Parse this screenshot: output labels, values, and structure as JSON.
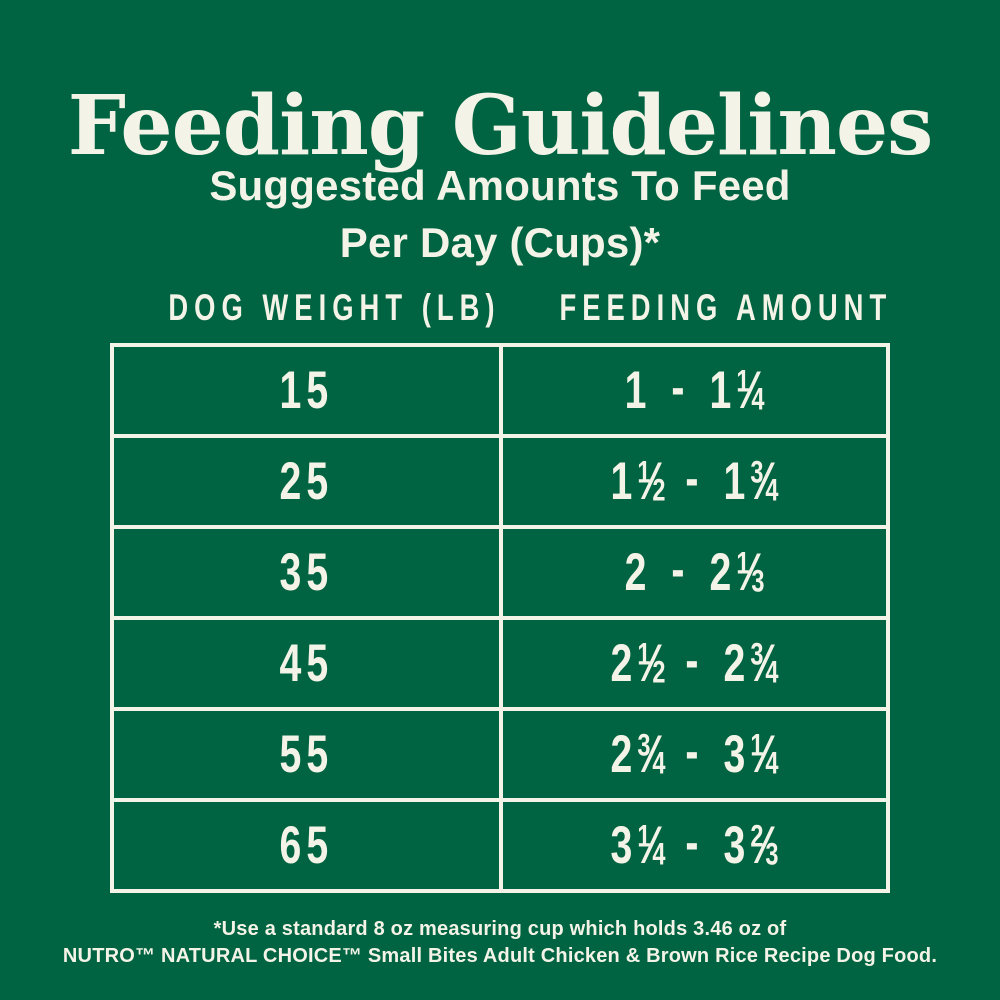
{
  "colors": {
    "background": "#006341",
    "text": "#f4f3e7"
  },
  "title": "Feeding Guidelines",
  "subtitle": {
    "line1": "Suggested Amounts To Feed",
    "line2": "Per Day (Cups)*"
  },
  "table": {
    "columns": [
      "DOG WEIGHT (LB)",
      "FEEDING AMOUNT"
    ],
    "rows": [
      {
        "weight": "15",
        "amount": "1 - 1¼"
      },
      {
        "weight": "25",
        "amount": "1½ - 1¾"
      },
      {
        "weight": "35",
        "amount": "2 - 2⅓"
      },
      {
        "weight": "45",
        "amount": "2½ - 2¾"
      },
      {
        "weight": "55",
        "amount": "2¾ - 3¼"
      },
      {
        "weight": "65",
        "amount": "3¼ - 3⅔"
      }
    ]
  },
  "footnote": {
    "line1": "*Use a standard 8 oz measuring cup which holds 3.46 oz of",
    "line2": "NUTRO™ NATURAL CHOICE™ Small Bites Adult Chicken & Brown Rice Recipe Dog Food."
  }
}
